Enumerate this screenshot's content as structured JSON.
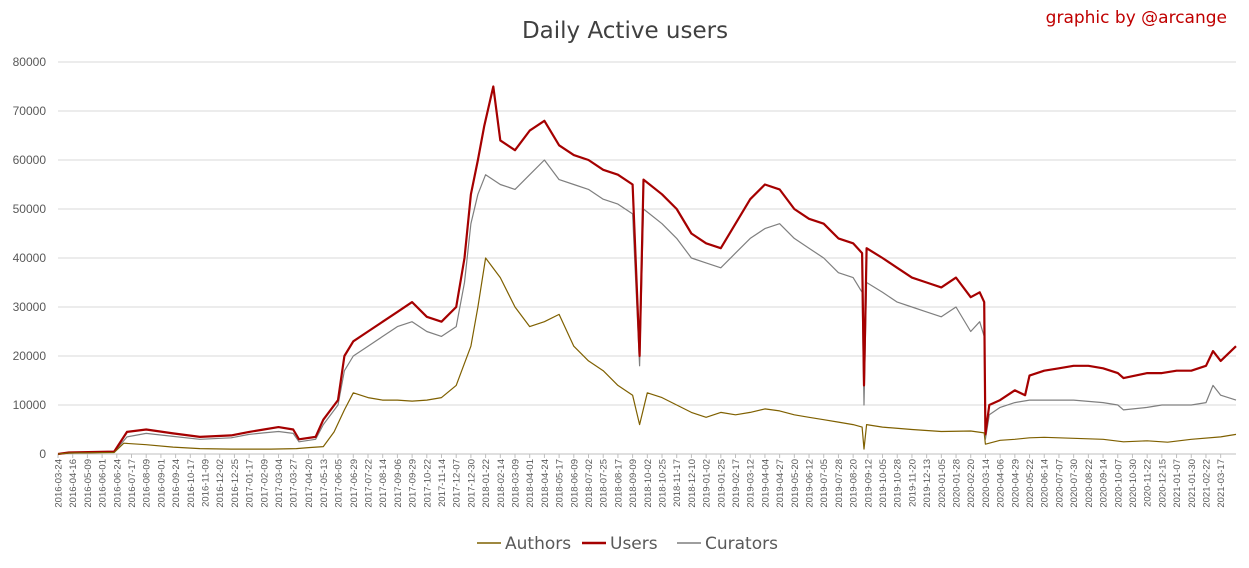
{
  "credit": "graphic by @arcange",
  "chart_data": {
    "type": "line",
    "title": "Daily Active users",
    "xlabel": "",
    "ylabel": "",
    "ylim": [
      0,
      80000
    ],
    "yticks": [
      0,
      10000,
      20000,
      30000,
      40000,
      50000,
      60000,
      70000,
      80000
    ],
    "grid": true,
    "legend_position": "bottom",
    "x_start": "2016-03-24",
    "x_end": "2021-04-10",
    "xticks": [
      "2016-03-24",
      "2016-04-16",
      "2016-05-09",
      "2016-06-01",
      "2016-06-24",
      "2016-07-17",
      "2016-08-09",
      "2016-09-01",
      "2016-09-24",
      "2016-10-17",
      "2016-11-09",
      "2016-12-02",
      "2016-12-25",
      "2017-01-17",
      "2017-02-09",
      "2017-03-04",
      "2017-03-27",
      "2017-04-20",
      "2017-05-13",
      "2017-06-05",
      "2017-06-29",
      "2017-07-22",
      "2017-08-14",
      "2017-09-06",
      "2017-09-29",
      "2017-10-22",
      "2017-11-14",
      "2017-12-07",
      "2017-12-30",
      "2018-01-22",
      "2018-02-14",
      "2018-03-09",
      "2018-04-01",
      "2018-04-24",
      "2018-05-17",
      "2018-06-09",
      "2018-07-02",
      "2018-07-25",
      "2018-08-17",
      "2018-09-09",
      "2018-10-02",
      "2018-10-25",
      "2018-11-17",
      "2018-12-10",
      "2019-01-02",
      "2019-01-25",
      "2019-02-17",
      "2019-03-12",
      "2019-04-04",
      "2019-04-27",
      "2019-05-20",
      "2019-06-12",
      "2019-07-05",
      "2019-07-28",
      "2019-08-20",
      "2019-09-12",
      "2019-10-05",
      "2019-10-28",
      "2019-11-20",
      "2019-12-13",
      "2020-01-05",
      "2020-01-28",
      "2020-02-20",
      "2020-03-14",
      "2020-04-06",
      "2020-04-29",
      "2020-05-22",
      "2020-06-14",
      "2020-07-07",
      "2020-07-30",
      "2020-08-22",
      "2020-09-14",
      "2020-10-07",
      "2020-10-30",
      "2020-11-22",
      "2020-12-15",
      "2021-01-07",
      "2021-01-30",
      "2021-02-22",
      "2021-03-17"
    ],
    "series": [
      {
        "name": "Authors",
        "color": "#7f6000",
        "points": [
          [
            "2016-03-24",
            0
          ],
          [
            "2016-04-10",
            200
          ],
          [
            "2016-06-20",
            300
          ],
          [
            "2016-07-05",
            2200
          ],
          [
            "2016-08-09",
            1900
          ],
          [
            "2016-09-20",
            1400
          ],
          [
            "2016-11-01",
            1100
          ],
          [
            "2016-12-20",
            1000
          ],
          [
            "2017-02-20",
            1000
          ],
          [
            "2017-04-01",
            1100
          ],
          [
            "2017-04-20",
            1300
          ],
          [
            "2017-05-13",
            1500
          ],
          [
            "2017-05-30",
            4500
          ],
          [
            "2017-06-15",
            9000
          ],
          [
            "2017-06-29",
            12500
          ],
          [
            "2017-07-22",
            11500
          ],
          [
            "2017-08-14",
            11000
          ],
          [
            "2017-09-06",
            11000
          ],
          [
            "2017-09-29",
            10800
          ],
          [
            "2017-10-22",
            11000
          ],
          [
            "2017-11-14",
            11500
          ],
          [
            "2017-12-07",
            14000
          ],
          [
            "2017-12-30",
            22000
          ],
          [
            "2018-01-10",
            30000
          ],
          [
            "2018-01-22",
            40000
          ],
          [
            "2018-02-14",
            36000
          ],
          [
            "2018-03-09",
            30000
          ],
          [
            "2018-04-01",
            26000
          ],
          [
            "2018-04-24",
            27000
          ],
          [
            "2018-05-17",
            28500
          ],
          [
            "2018-06-09",
            22000
          ],
          [
            "2018-07-02",
            19000
          ],
          [
            "2018-07-25",
            17000
          ],
          [
            "2018-08-17",
            14000
          ],
          [
            "2018-09-09",
            12000
          ],
          [
            "2018-09-20",
            6000
          ],
          [
            "2018-10-02",
            12500
          ],
          [
            "2018-10-25",
            11500
          ],
          [
            "2018-11-17",
            10000
          ],
          [
            "2018-12-10",
            8500
          ],
          [
            "2019-01-02",
            7500
          ],
          [
            "2019-01-25",
            8500
          ],
          [
            "2019-02-17",
            8000
          ],
          [
            "2019-03-12",
            8500
          ],
          [
            "2019-04-04",
            9200
          ],
          [
            "2019-04-27",
            8800
          ],
          [
            "2019-05-20",
            8000
          ],
          [
            "2019-06-12",
            7500
          ],
          [
            "2019-07-05",
            7000
          ],
          [
            "2019-07-28",
            6500
          ],
          [
            "2019-08-20",
            6000
          ],
          [
            "2019-09-03",
            5500
          ],
          [
            "2019-09-06",
            1000
          ],
          [
            "2019-09-10",
            6000
          ],
          [
            "2019-10-05",
            5500
          ],
          [
            "2019-11-20",
            5000
          ],
          [
            "2019-12-13",
            4800
          ],
          [
            "2020-01-05",
            4600
          ],
          [
            "2020-02-20",
            4700
          ],
          [
            "2020-03-12",
            4300
          ],
          [
            "2020-03-14",
            2000
          ],
          [
            "2020-04-06",
            2800
          ],
          [
            "2020-04-29",
            3000
          ],
          [
            "2020-05-22",
            3300
          ],
          [
            "2020-06-14",
            3400
          ],
          [
            "2020-07-30",
            3200
          ],
          [
            "2020-09-14",
            3000
          ],
          [
            "2020-10-16",
            2500
          ],
          [
            "2020-11-22",
            2700
          ],
          [
            "2020-12-24",
            2400
          ],
          [
            "2021-01-30",
            3000
          ],
          [
            "2021-03-17",
            3500
          ],
          [
            "2021-04-10",
            4000
          ]
        ]
      },
      {
        "name": "Users",
        "color": "#a50000",
        "points": [
          [
            "2016-03-24",
            0
          ],
          [
            "2016-04-10",
            300
          ],
          [
            "2016-06-20",
            500
          ],
          [
            "2016-07-10",
            4500
          ],
          [
            "2016-08-09",
            5000
          ],
          [
            "2016-09-20",
            4200
          ],
          [
            "2016-11-01",
            3500
          ],
          [
            "2016-12-20",
            3800
          ],
          [
            "2017-01-17",
            4500
          ],
          [
            "2017-02-09",
            5000
          ],
          [
            "2017-03-04",
            5500
          ],
          [
            "2017-03-27",
            5000
          ],
          [
            "2017-04-05",
            3000
          ],
          [
            "2017-05-01",
            3500
          ],
          [
            "2017-05-13",
            7000
          ],
          [
            "2017-06-05",
            11000
          ],
          [
            "2017-06-15",
            20000
          ],
          [
            "2017-06-29",
            23000
          ],
          [
            "2017-07-22",
            25000
          ],
          [
            "2017-08-14",
            27000
          ],
          [
            "2017-09-06",
            29000
          ],
          [
            "2017-09-29",
            31000
          ],
          [
            "2017-10-22",
            28000
          ],
          [
            "2017-11-14",
            27000
          ],
          [
            "2017-12-07",
            30000
          ],
          [
            "2017-12-20",
            40000
          ],
          [
            "2017-12-30",
            53000
          ],
          [
            "2018-01-10",
            60000
          ],
          [
            "2018-01-20",
            67000
          ],
          [
            "2018-02-03",
            75000
          ],
          [
            "2018-02-14",
            64000
          ],
          [
            "2018-03-09",
            62000
          ],
          [
            "2018-04-01",
            66000
          ],
          [
            "2018-04-24",
            68000
          ],
          [
            "2018-05-17",
            63000
          ],
          [
            "2018-06-09",
            61000
          ],
          [
            "2018-07-02",
            60000
          ],
          [
            "2018-07-25",
            58000
          ],
          [
            "2018-08-17",
            57000
          ],
          [
            "2018-09-09",
            55000
          ],
          [
            "2018-09-20",
            20000
          ],
          [
            "2018-09-26",
            56000
          ],
          [
            "2018-10-25",
            53000
          ],
          [
            "2018-11-17",
            50000
          ],
          [
            "2018-12-10",
            45000
          ],
          [
            "2019-01-02",
            43000
          ],
          [
            "2019-01-25",
            42000
          ],
          [
            "2019-02-17",
            47000
          ],
          [
            "2019-03-12",
            52000
          ],
          [
            "2019-04-04",
            55000
          ],
          [
            "2019-04-27",
            54000
          ],
          [
            "2019-05-20",
            50000
          ],
          [
            "2019-06-12",
            48000
          ],
          [
            "2019-07-05",
            47000
          ],
          [
            "2019-07-28",
            44000
          ],
          [
            "2019-08-20",
            43000
          ],
          [
            "2019-09-03",
            41000
          ],
          [
            "2019-09-06",
            14000
          ],
          [
            "2019-09-10",
            42000
          ],
          [
            "2019-10-05",
            40000
          ],
          [
            "2019-10-28",
            38000
          ],
          [
            "2019-11-20",
            36000
          ],
          [
            "2019-12-13",
            35000
          ],
          [
            "2020-01-05",
            34000
          ],
          [
            "2020-01-28",
            36000
          ],
          [
            "2020-02-20",
            32000
          ],
          [
            "2020-03-05",
            33000
          ],
          [
            "2020-03-12",
            31000
          ],
          [
            "2020-03-14",
            4000
          ],
          [
            "2020-03-20",
            10000
          ],
          [
            "2020-04-06",
            11000
          ],
          [
            "2020-04-29",
            13000
          ],
          [
            "2020-05-15",
            12000
          ],
          [
            "2020-05-22",
            16000
          ],
          [
            "2020-06-14",
            17000
          ],
          [
            "2020-07-07",
            17500
          ],
          [
            "2020-07-30",
            18000
          ],
          [
            "2020-08-22",
            18000
          ],
          [
            "2020-09-14",
            17500
          ],
          [
            "2020-10-07",
            16500
          ],
          [
            "2020-10-16",
            15500
          ],
          [
            "2020-11-22",
            16500
          ],
          [
            "2020-12-15",
            16500
          ],
          [
            "2021-01-07",
            17000
          ],
          [
            "2021-01-30",
            17000
          ],
          [
            "2021-02-22",
            18000
          ],
          [
            "2021-03-05",
            21000
          ],
          [
            "2021-03-17",
            19000
          ],
          [
            "2021-04-10",
            22000
          ]
        ]
      },
      {
        "name": "Curators",
        "color": "#7f7f7f",
        "points": [
          [
            "2016-03-24",
            0
          ],
          [
            "2016-04-10",
            200
          ],
          [
            "2016-06-20",
            400
          ],
          [
            "2016-07-10",
            3500
          ],
          [
            "2016-08-09",
            4200
          ],
          [
            "2016-09-20",
            3600
          ],
          [
            "2016-11-01",
            3000
          ],
          [
            "2016-12-20",
            3300
          ],
          [
            "2017-01-17",
            4000
          ],
          [
            "2017-02-09",
            4300
          ],
          [
            "2017-03-04",
            4600
          ],
          [
            "2017-03-27",
            4200
          ],
          [
            "2017-04-05",
            2500
          ],
          [
            "2017-05-01",
            3000
          ],
          [
            "2017-05-13",
            6000
          ],
          [
            "2017-06-05",
            10000
          ],
          [
            "2017-06-15",
            17000
          ],
          [
            "2017-06-29",
            20000
          ],
          [
            "2017-07-22",
            22000
          ],
          [
            "2017-08-14",
            24000
          ],
          [
            "2017-09-06",
            26000
          ],
          [
            "2017-09-29",
            27000
          ],
          [
            "2017-10-22",
            25000
          ],
          [
            "2017-11-14",
            24000
          ],
          [
            "2017-12-07",
            26000
          ],
          [
            "2017-12-20",
            35000
          ],
          [
            "2017-12-30",
            47000
          ],
          [
            "2018-01-10",
            53000
          ],
          [
            "2018-01-22",
            57000
          ],
          [
            "2018-02-14",
            55000
          ],
          [
            "2018-03-09",
            54000
          ],
          [
            "2018-04-01",
            57000
          ],
          [
            "2018-04-24",
            60000
          ],
          [
            "2018-05-17",
            56000
          ],
          [
            "2018-06-09",
            55000
          ],
          [
            "2018-07-02",
            54000
          ],
          [
            "2018-07-25",
            52000
          ],
          [
            "2018-08-17",
            51000
          ],
          [
            "2018-09-09",
            49000
          ],
          [
            "2018-09-20",
            18000
          ],
          [
            "2018-09-26",
            50000
          ],
          [
            "2018-10-25",
            47000
          ],
          [
            "2018-11-17",
            44000
          ],
          [
            "2018-12-10",
            40000
          ],
          [
            "2019-01-02",
            39000
          ],
          [
            "2019-01-25",
            38000
          ],
          [
            "2019-02-17",
            41000
          ],
          [
            "2019-03-12",
            44000
          ],
          [
            "2019-04-04",
            46000
          ],
          [
            "2019-04-27",
            47000
          ],
          [
            "2019-05-20",
            44000
          ],
          [
            "2019-06-12",
            42000
          ],
          [
            "2019-07-05",
            40000
          ],
          [
            "2019-07-28",
            37000
          ],
          [
            "2019-08-20",
            36000
          ],
          [
            "2019-09-03",
            33000
          ],
          [
            "2019-09-06",
            10000
          ],
          [
            "2019-09-10",
            35000
          ],
          [
            "2019-10-05",
            33000
          ],
          [
            "2019-10-28",
            31000
          ],
          [
            "2019-11-20",
            30000
          ],
          [
            "2019-12-13",
            29000
          ],
          [
            "2020-01-05",
            28000
          ],
          [
            "2020-01-28",
            30000
          ],
          [
            "2020-02-20",
            25000
          ],
          [
            "2020-03-05",
            27000
          ],
          [
            "2020-03-12",
            24000
          ],
          [
            "2020-03-14",
            3000
          ],
          [
            "2020-03-20",
            8000
          ],
          [
            "2020-04-06",
            9500
          ],
          [
            "2020-04-29",
            10500
          ],
          [
            "2020-05-22",
            11000
          ],
          [
            "2020-06-14",
            11000
          ],
          [
            "2020-07-30",
            11000
          ],
          [
            "2020-09-14",
            10500
          ],
          [
            "2020-10-07",
            10000
          ],
          [
            "2020-10-16",
            9000
          ],
          [
            "2020-11-22",
            9500
          ],
          [
            "2020-12-15",
            10000
          ],
          [
            "2021-01-07",
            10000
          ],
          [
            "2021-01-30",
            10000
          ],
          [
            "2021-02-22",
            10500
          ],
          [
            "2021-03-05",
            14000
          ],
          [
            "2021-03-17",
            12000
          ],
          [
            "2021-04-10",
            11000
          ]
        ]
      }
    ]
  }
}
